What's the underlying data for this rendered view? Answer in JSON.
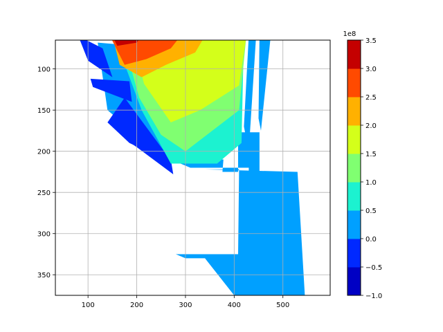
{
  "chart_data": {
    "type": "contourf",
    "title": "",
    "xlabel": "",
    "ylabel": "",
    "xlim": [
      33,
      597
    ],
    "ylim": [
      375,
      65
    ],
    "y_inverted": true,
    "grid": true,
    "xticks": [
      100,
      200,
      300,
      400,
      500
    ],
    "yticks": [
      100,
      150,
      200,
      250,
      300,
      350
    ],
    "regions": [
      {
        "level": 0.25,
        "points": [
          [
            315,
            220
          ],
          [
            430,
            220
          ],
          [
            430,
            240
          ],
          [
            452,
            240
          ],
          [
            452,
            177
          ],
          [
            408,
            177
          ],
          [
            408,
            225
          ],
          [
            376,
            225
          ],
          [
            378,
            210
          ],
          [
            250,
            205
          ],
          [
            310,
            220
          ]
        ]
      },
      {
        "level": 0.25,
        "points": [
          [
            340,
            222
          ],
          [
            410,
            222
          ],
          [
            408,
            325
          ],
          [
            338,
            325
          ],
          [
            340,
            330
          ],
          [
            400,
            375
          ],
          [
            545,
            375
          ],
          [
            530,
            225
          ]
        ]
      },
      {
        "level": 0.25,
        "points": [
          [
            280,
            325
          ],
          [
            405,
            325
          ],
          [
            405,
            330
          ],
          [
            300,
            330
          ]
        ]
      },
      {
        "level": 0.25,
        "points": [
          [
            120,
            68
          ],
          [
            160,
            70
          ],
          [
            315,
            215
          ],
          [
            270,
            215
          ],
          [
            140,
            150
          ]
        ]
      },
      {
        "level": 0.25,
        "points": [
          [
            452,
            60
          ],
          [
            475,
            60
          ],
          [
            455,
            175
          ],
          [
            450,
            160
          ]
        ]
      },
      {
        "level": 0.25,
        "points": [
          [
            430,
            60
          ],
          [
            445,
            60
          ],
          [
            430,
            200
          ],
          [
            420,
            170
          ]
        ]
      },
      {
        "level": -0.25,
        "points": [
          [
            140,
            165
          ],
          [
            175,
            135
          ],
          [
            275,
            215
          ],
          [
            185,
            190
          ]
        ]
      },
      {
        "level": -0.25,
        "points": [
          [
            105,
            112
          ],
          [
            185,
            115
          ],
          [
            190,
            140
          ],
          [
            110,
            122
          ]
        ]
      },
      {
        "level": -0.25,
        "points": [
          [
            80,
            60
          ],
          [
            130,
            75
          ],
          [
            150,
            110
          ],
          [
            100,
            90
          ]
        ]
      },
      {
        "level": -0.25,
        "points": [
          [
            180,
            187
          ],
          [
            270,
            210
          ],
          [
            275,
            228
          ],
          [
            200,
            195
          ]
        ]
      },
      {
        "level": 0.75,
        "points": [
          [
            160,
            70
          ],
          [
            420,
            60
          ],
          [
            415,
            190
          ],
          [
            365,
            215
          ],
          [
            270,
            215
          ],
          [
            210,
            150
          ]
        ]
      },
      {
        "level": 1.25,
        "points": [
          [
            170,
            60
          ],
          [
            425,
            60
          ],
          [
            410,
            150
          ],
          [
            300,
            200
          ],
          [
            250,
            180
          ],
          [
            205,
            135
          ]
        ]
      },
      {
        "level": 1.75,
        "points": [
          [
            190,
            60
          ],
          [
            425,
            60
          ],
          [
            410,
            120
          ],
          [
            330,
            150
          ],
          [
            270,
            165
          ],
          [
            215,
            118
          ]
        ]
      },
      {
        "level": 2.25,
        "points": [
          [
            150,
            60
          ],
          [
            340,
            60
          ],
          [
            320,
            80
          ],
          [
            260,
            95
          ],
          [
            210,
            110
          ],
          [
            165,
            95
          ]
        ]
      },
      {
        "level": 2.75,
        "points": [
          [
            145,
            60
          ],
          [
            290,
            60
          ],
          [
            270,
            75
          ],
          [
            220,
            88
          ],
          [
            175,
            95
          ]
        ]
      },
      {
        "level": 3.25,
        "points": [
          [
            150,
            60
          ],
          [
            210,
            60
          ],
          [
            200,
            68
          ],
          [
            160,
            72
          ]
        ]
      }
    ],
    "colorbar": {
      "exponent_label": "1e8",
      "ticks": [
        "3.5",
        "3.0",
        "2.5",
        "2.0",
        "1.5",
        "1.0",
        "0.5",
        "0.0",
        "−0.5",
        "−1.0"
      ],
      "boundaries": [
        -1.0,
        -0.5,
        0.0,
        0.5,
        1.0,
        1.5,
        2.0,
        2.5,
        3.0,
        3.5
      ],
      "colors": [
        "#0000c4",
        "#0029ff",
        "#00a0ff",
        "#1cf2d0",
        "#80ff71",
        "#d4ff1a",
        "#ffb100",
        "#ff4a00",
        "#c40000"
      ]
    }
  }
}
